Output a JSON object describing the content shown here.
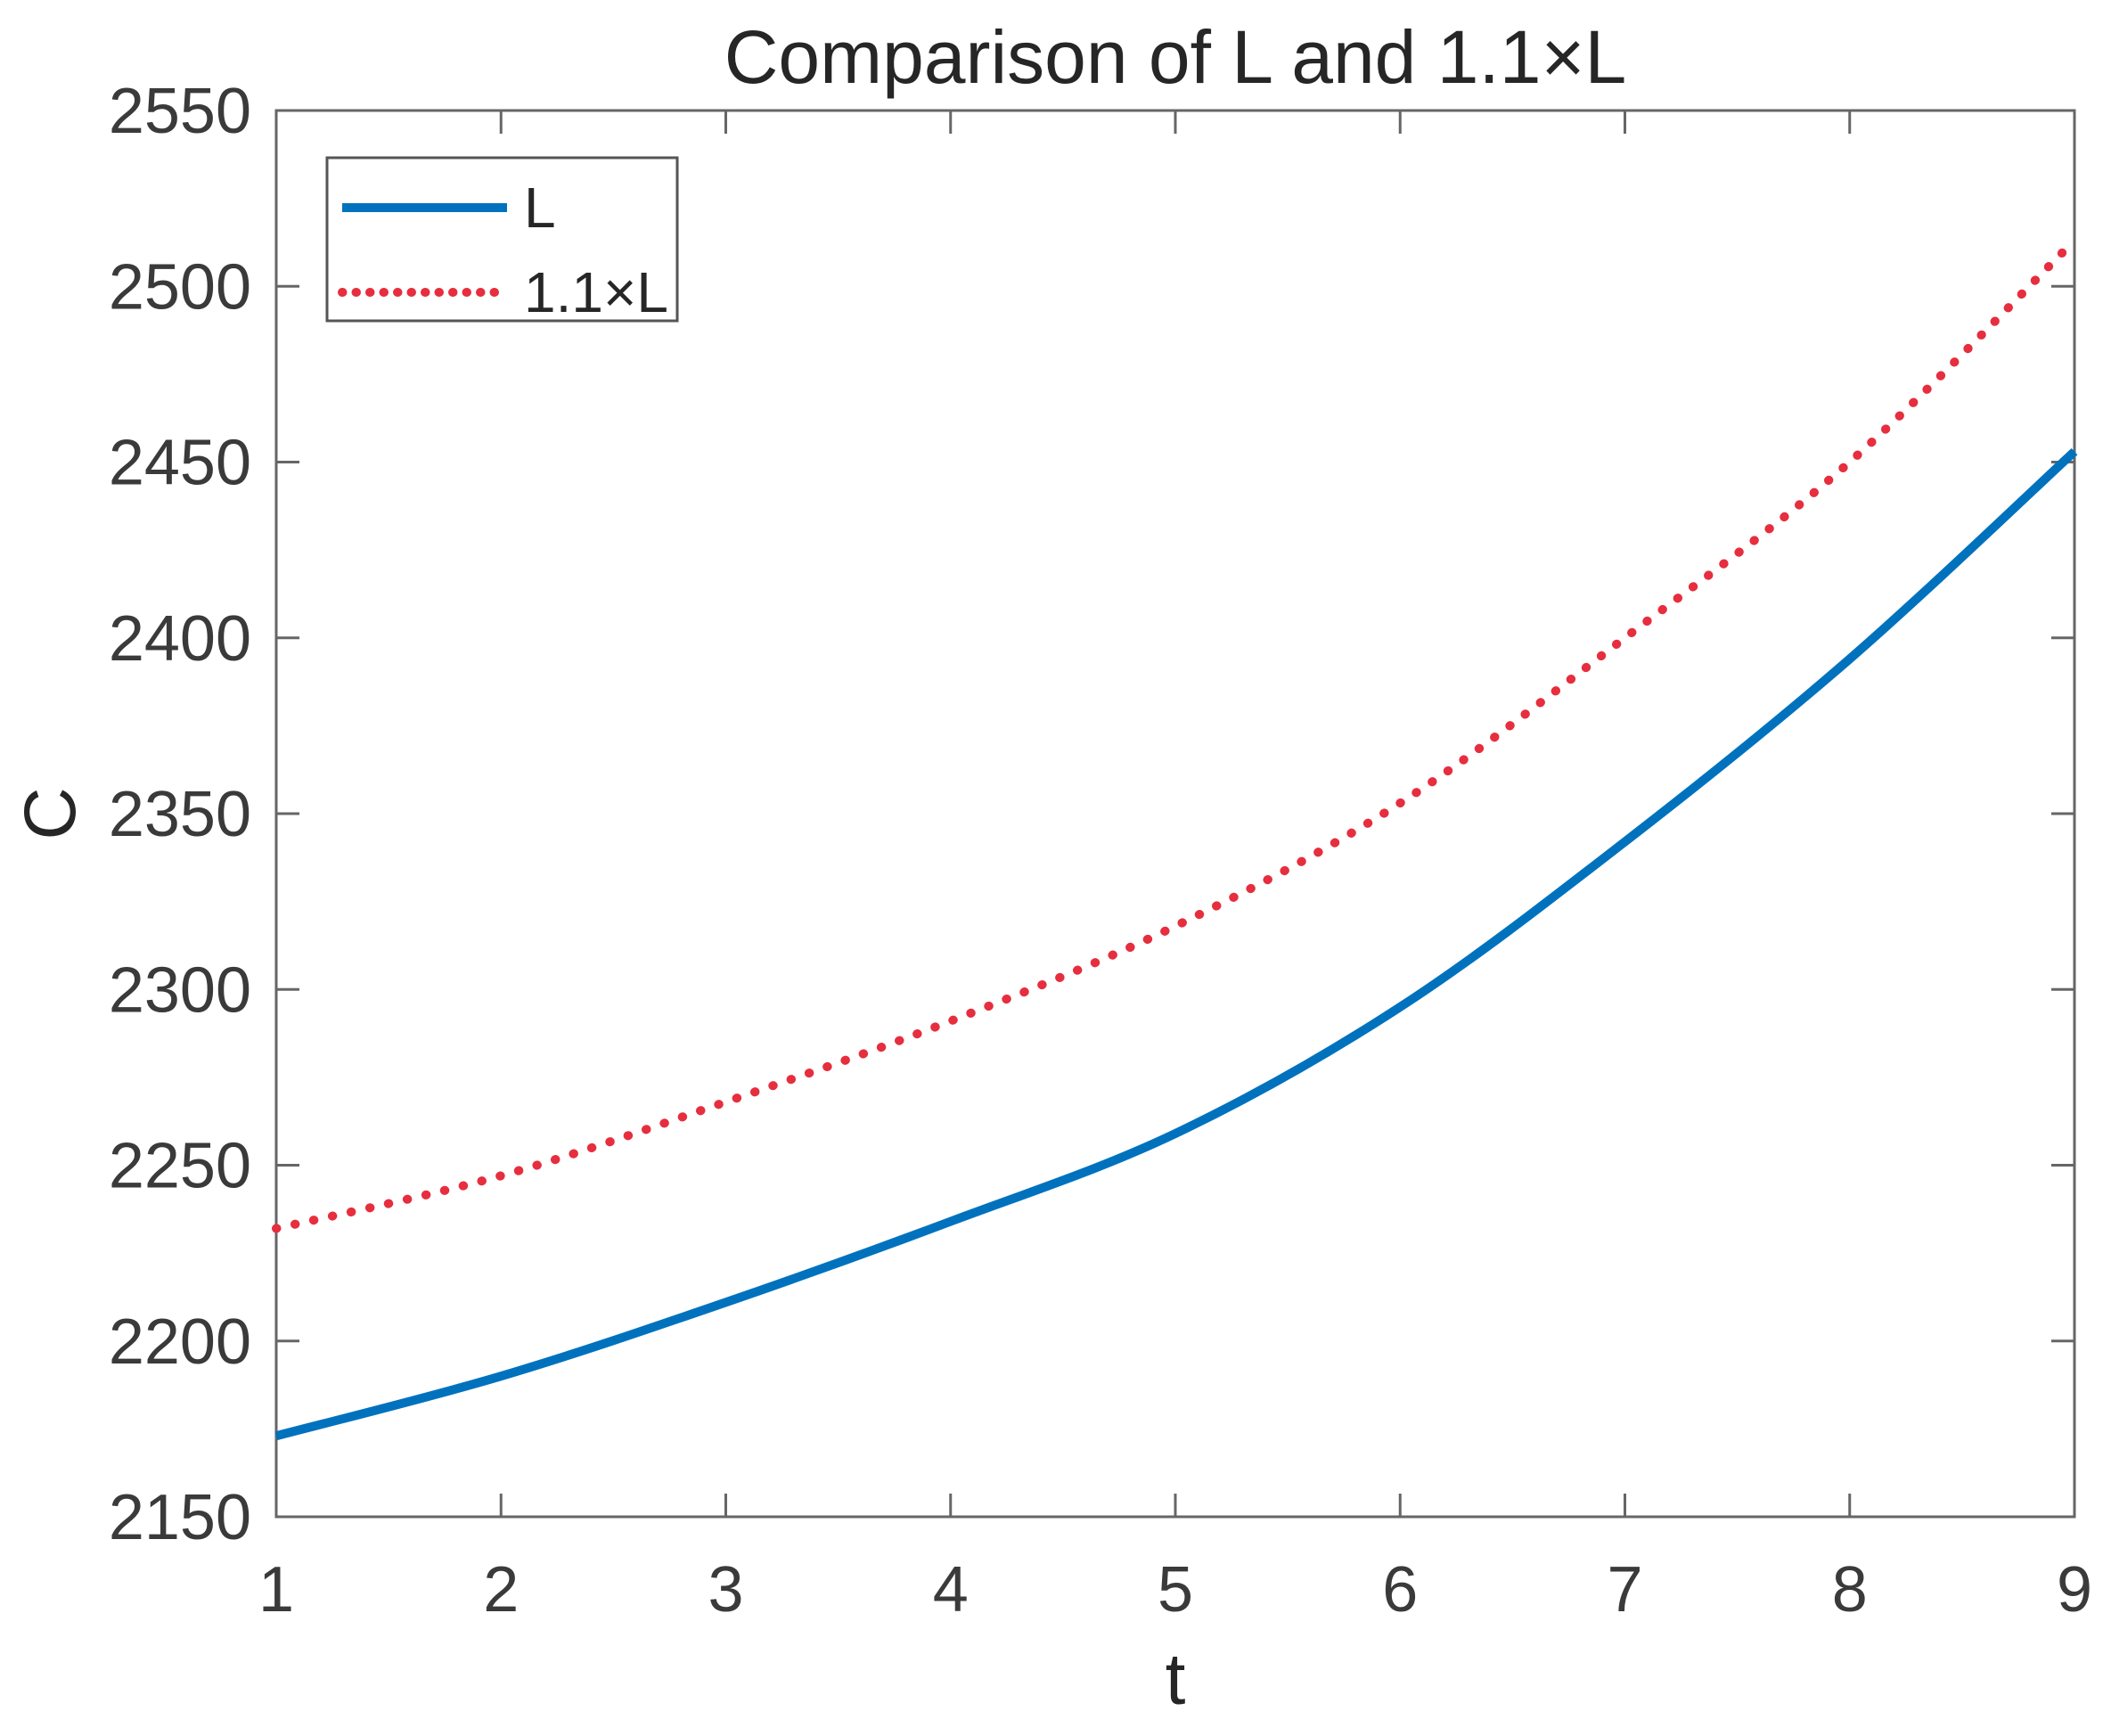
{
  "chart_data": {
    "type": "line",
    "title": "Comparison of L and 1.1×L",
    "xlabel": "t",
    "ylabel": "C",
    "xlim": [
      1,
      9
    ],
    "ylim": [
      2150,
      2550
    ],
    "xticks": [
      1,
      2,
      3,
      4,
      5,
      6,
      7,
      8,
      9
    ],
    "yticks": [
      2150,
      2200,
      2250,
      2300,
      2350,
      2400,
      2450,
      2500,
      2550
    ],
    "grid": false,
    "x": [
      1,
      2,
      3,
      4,
      5,
      6,
      7,
      8,
      9
    ],
    "series": [
      {
        "name": "L",
        "style": "solid",
        "color": "#0072BD",
        "values": [
          2173,
          2190,
          2211,
          2234,
          2259,
          2295,
          2342,
          2394,
          2453
        ]
      },
      {
        "name": "1.1×L",
        "style": "dotted",
        "color": "#E62E3E",
        "values": [
          2232,
          2247,
          2268,
          2291,
          2318,
          2353,
          2400,
          2450,
          2513
        ]
      }
    ],
    "legend": {
      "position": "top-left",
      "entries": [
        "L",
        "1.1×L"
      ]
    },
    "axis_color": "#666666",
    "tick_label_color": "#3a3a3a",
    "background_color": "#ffffff"
  }
}
